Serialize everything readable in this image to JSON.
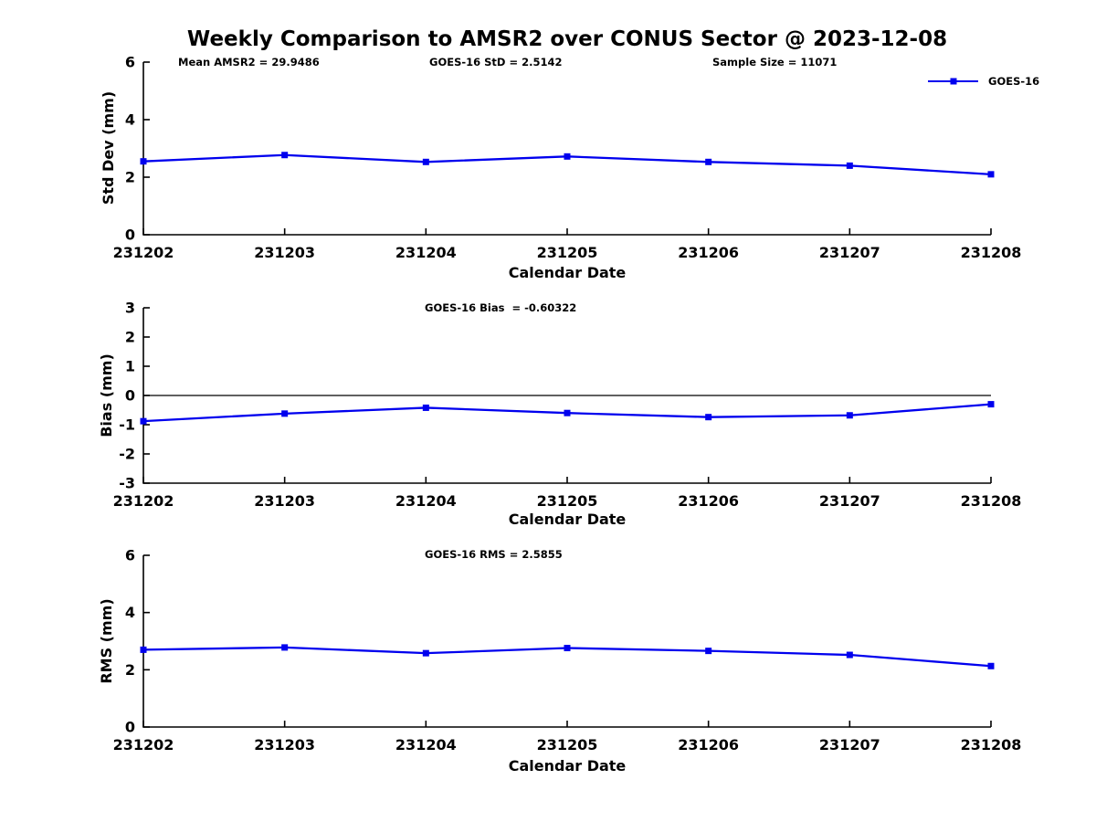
{
  "title": "Weekly Comparison to AMSR2 over CONUS Sector @ 2023-12-08",
  "legend": {
    "label": "GOES-16",
    "color": "#0000ee"
  },
  "chart_data": [
    {
      "type": "line",
      "panel": "std-dev",
      "annotations": [
        "Mean AMSR2 = 29.9486",
        "GOES-16 StD = 2.5142",
        "Sample Size = 11071"
      ],
      "ylabel": "Std Dev (mm)",
      "xlabel": "Calendar Date",
      "categories": [
        "231202",
        "231203",
        "231204",
        "231205",
        "231206",
        "231207",
        "231208"
      ],
      "yticks": [
        0,
        2,
        4,
        6
      ],
      "ylim": [
        0,
        6
      ],
      "grid": false,
      "zero_line": false,
      "legend_position": "outside-top-right",
      "series": [
        {
          "name": "GOES-16",
          "color": "#0000ee",
          "marker": "square",
          "values": [
            2.55,
            2.77,
            2.53,
            2.72,
            2.53,
            2.4,
            2.1
          ]
        }
      ]
    },
    {
      "type": "line",
      "panel": "bias",
      "annotations": [
        "GOES-16 Bias  = -0.60322"
      ],
      "ylabel": "Bias (mm)",
      "xlabel": "Calendar Date",
      "categories": [
        "231202",
        "231203",
        "231204",
        "231205",
        "231206",
        "231207",
        "231208"
      ],
      "yticks": [
        -3,
        -2,
        -1,
        0,
        1,
        2,
        3
      ],
      "ylim": [
        -3,
        3
      ],
      "grid": false,
      "zero_line": true,
      "series": [
        {
          "name": "GOES-16",
          "color": "#0000ee",
          "marker": "square",
          "values": [
            -0.88,
            -0.62,
            -0.42,
            -0.6,
            -0.74,
            -0.68,
            -0.3
          ]
        }
      ]
    },
    {
      "type": "line",
      "panel": "rms",
      "annotations": [
        "GOES-16 RMS = 2.5855"
      ],
      "ylabel": "RMS (mm)",
      "xlabel": "Calendar Date",
      "categories": [
        "231202",
        "231203",
        "231204",
        "231205",
        "231206",
        "231207",
        "231208"
      ],
      "yticks": [
        0,
        2,
        4,
        6
      ],
      "ylim": [
        0,
        6
      ],
      "grid": false,
      "zero_line": false,
      "series": [
        {
          "name": "GOES-16",
          "color": "#0000ee",
          "marker": "square",
          "values": [
            2.7,
            2.78,
            2.58,
            2.76,
            2.66,
            2.52,
            2.13
          ]
        }
      ]
    }
  ]
}
